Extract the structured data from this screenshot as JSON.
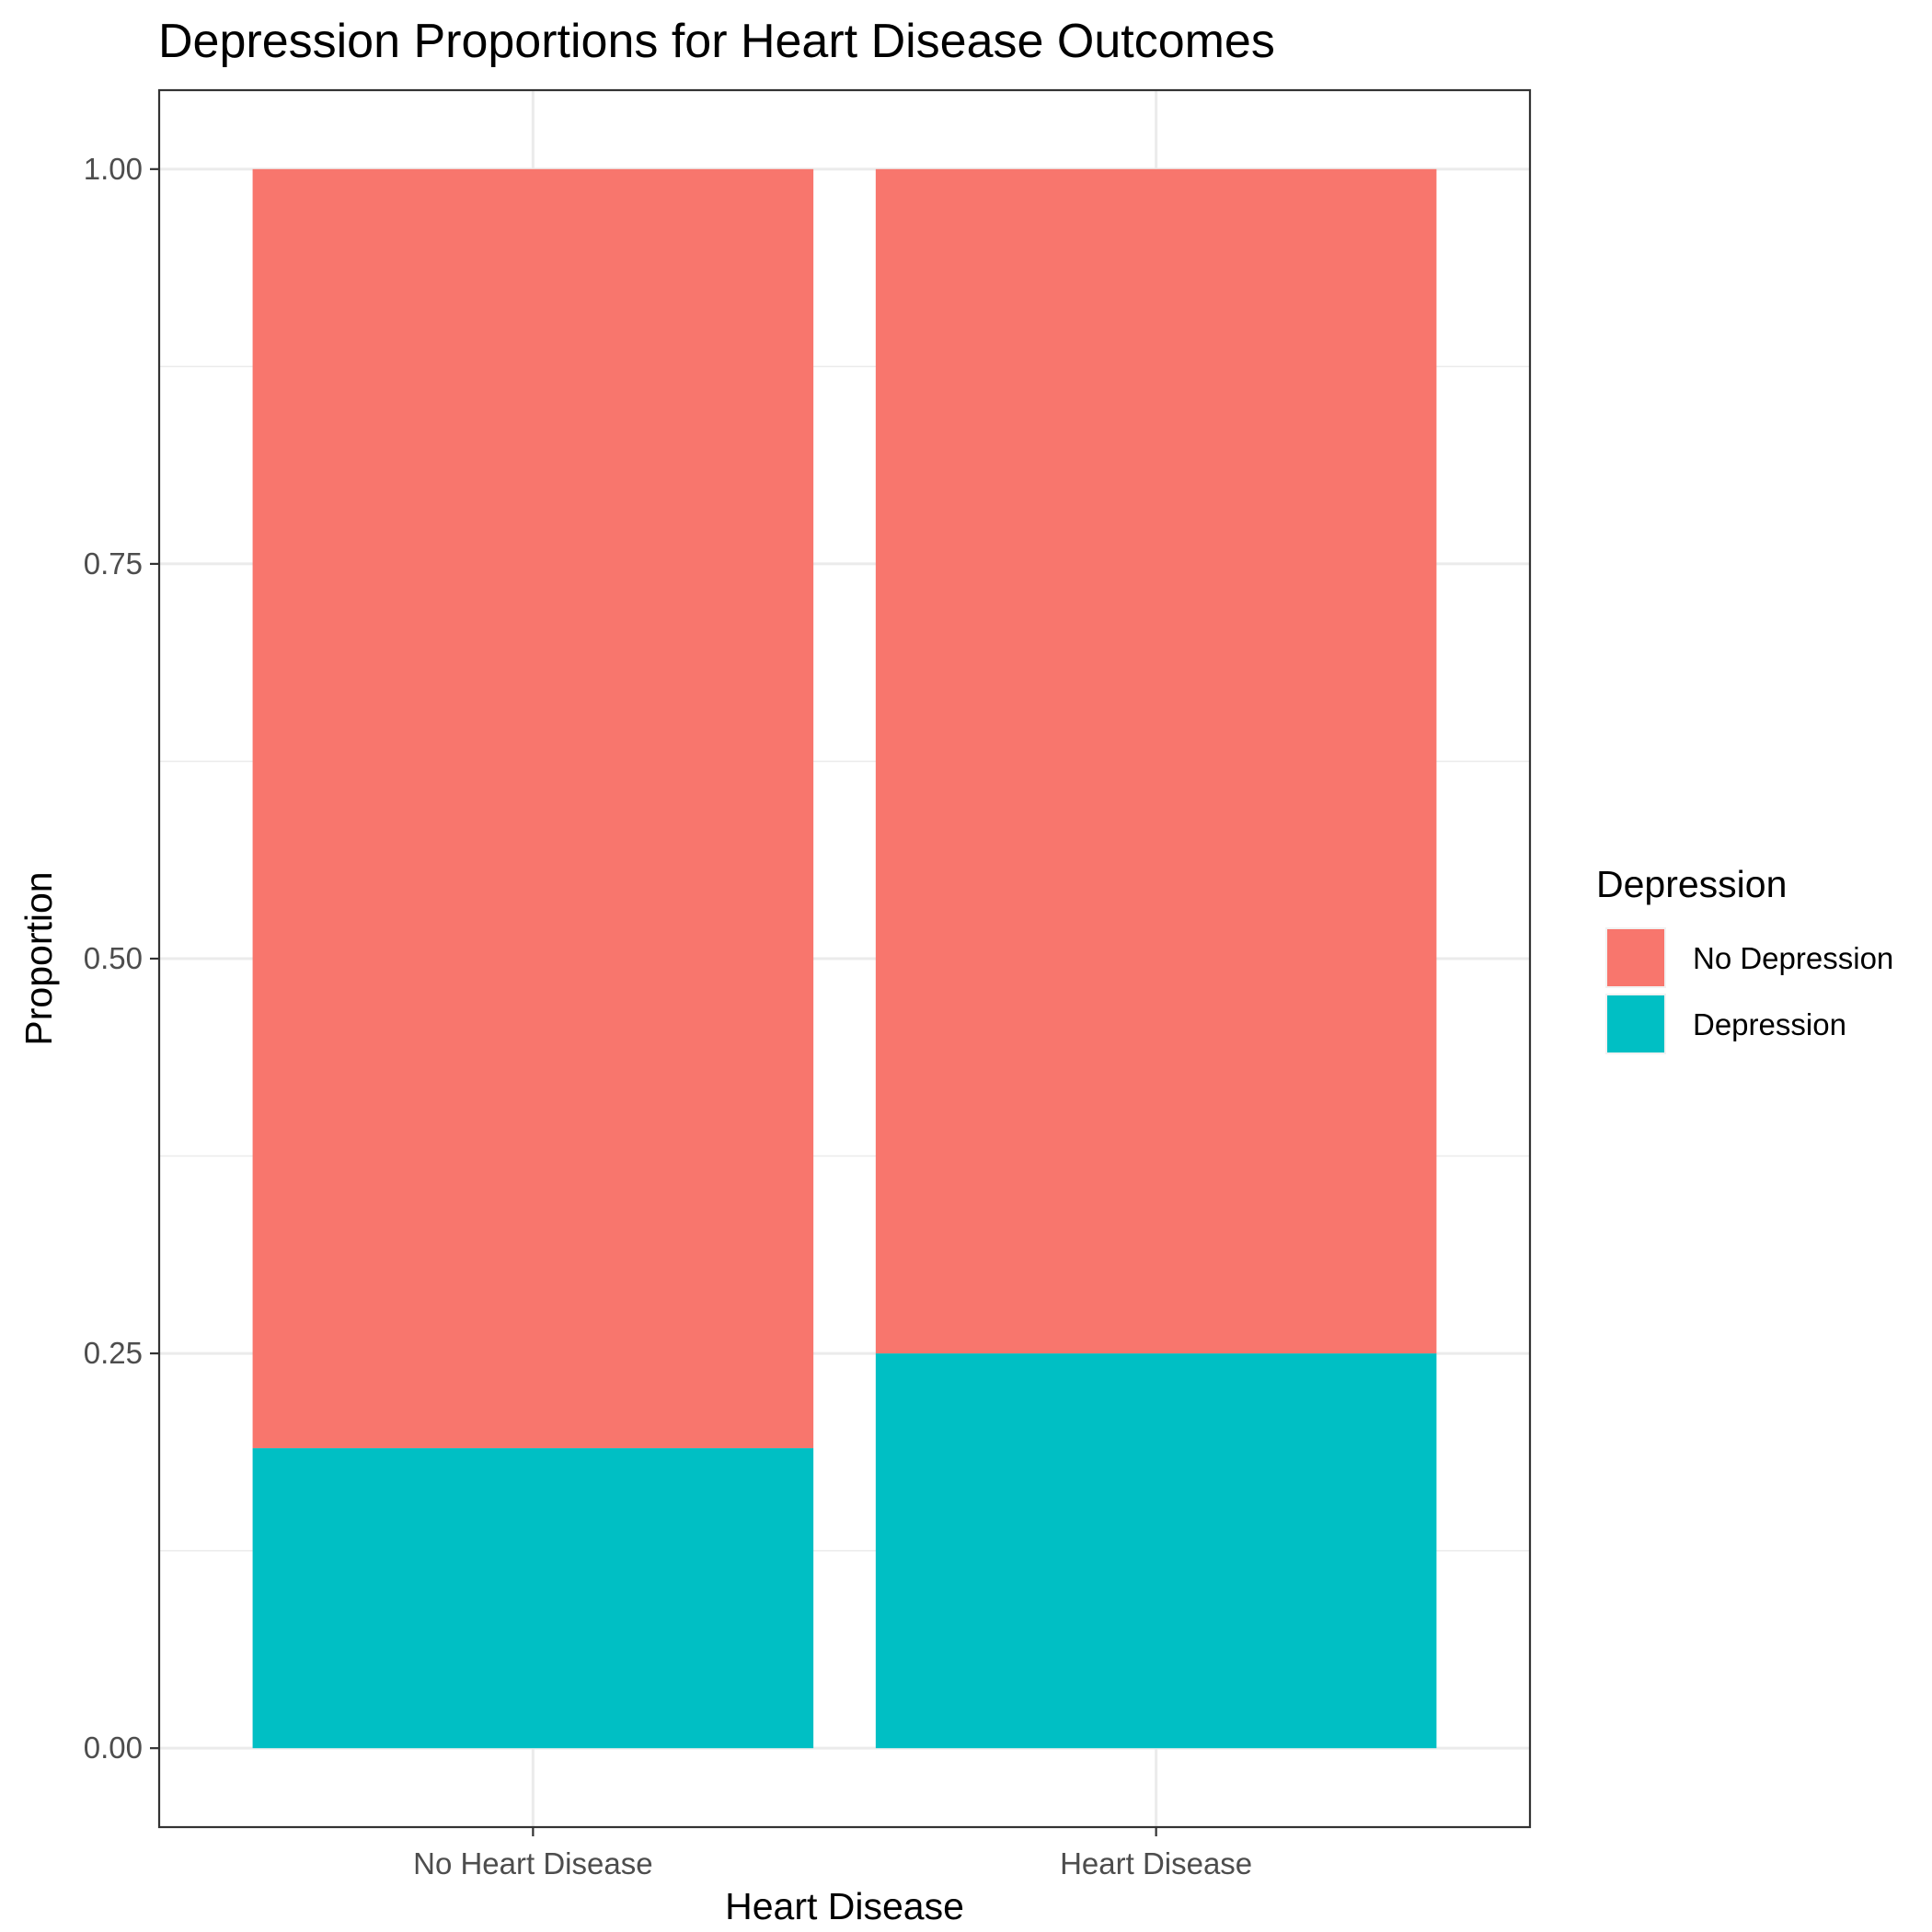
{
  "chart_data": {
    "type": "bar",
    "stacked": true,
    "title": "Depression Proportions for Heart Disease Outcomes",
    "xlabel": "Heart Disease",
    "ylabel": "Proportion",
    "categories": [
      "No Heart Disease",
      "Heart Disease"
    ],
    "ylim": [
      -0.05,
      1.05
    ],
    "yticks": [
      0.0,
      0.25,
      0.5,
      0.75,
      1.0
    ],
    "ytick_labels": [
      "0.00",
      "0.25",
      "0.50",
      "0.75",
      "1.00"
    ],
    "grid": true,
    "legend": {
      "title": "Depression",
      "position": "right"
    },
    "series": [
      {
        "name": "Depression",
        "color": "#00BFC4",
        "values": [
          0.19,
          0.25
        ]
      },
      {
        "name": "No Depression",
        "color": "#F8766D",
        "values": [
          0.81,
          0.75
        ]
      }
    ],
    "legend_order": [
      "No Depression",
      "Depression"
    ]
  }
}
